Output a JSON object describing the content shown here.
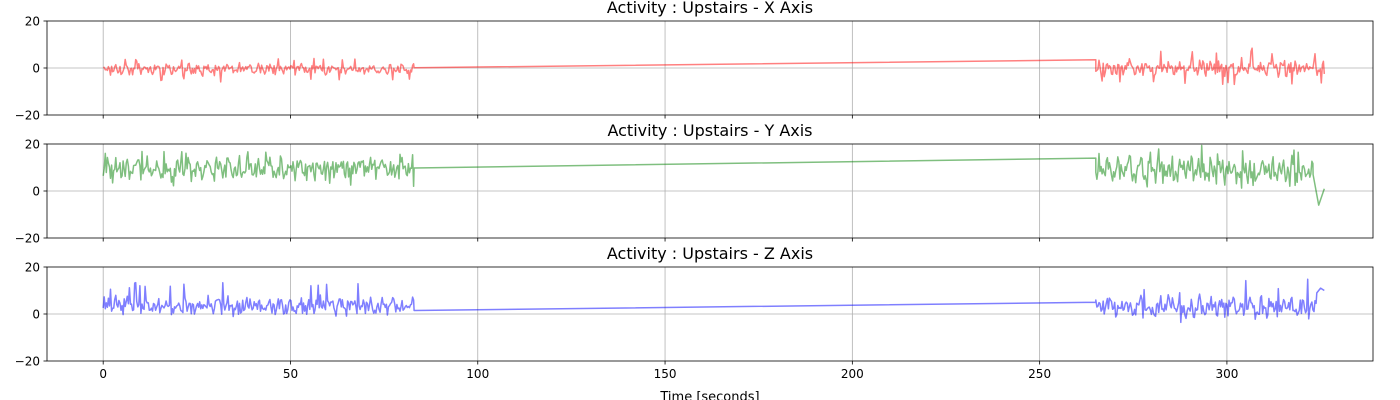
{
  "chart_data": [
    {
      "type": "line",
      "title": "Activity : Upstairs - X Axis",
      "xlabel": "",
      "ylabel": "",
      "xlim": [
        -15,
        339
      ],
      "ylim": [
        -20,
        20
      ],
      "xticks": [
        "0",
        "50",
        "100",
        "150",
        "200",
        "250",
        "300"
      ],
      "yticks": [
        "20",
        "0",
        "−20"
      ],
      "grid": true,
      "show_xtick_labels": false,
      "color": "#ff0000",
      "series": [
        {
          "segments": [
            {
              "range": [
                0,
                83
              ],
              "mean": -0.5,
              "amp": 2.2,
              "peak": 4.5,
              "spike": -6
            },
            {
              "range": [
                265,
                326
              ],
              "mean": 0,
              "amp": 3.2,
              "peak": 8.5,
              "spike": -7
            }
          ],
          "bridge": [
            [
              83,
              0.1
            ],
            [
              265,
              3.5
            ]
          ],
          "end_value": -2.5
        }
      ]
    },
    {
      "type": "line",
      "title": "Activity : Upstairs - Y Axis",
      "xlabel": "",
      "ylabel": "",
      "xlim": [
        -15,
        339
      ],
      "ylim": [
        -20,
        20
      ],
      "xticks": [
        "0",
        "50",
        "100",
        "150",
        "200",
        "250",
        "300"
      ],
      "yticks": [
        "20",
        "0",
        "−20"
      ],
      "grid": true,
      "show_xtick_labels": false,
      "color": "#008000",
      "series": [
        {
          "segments": [
            {
              "range": [
                0,
                83
              ],
              "mean": 9.5,
              "amp": 4.5,
              "peak": 17.5,
              "spike": 2
            },
            {
              "range": [
                265,
                323
              ],
              "mean": 9,
              "amp": 5.5,
              "peak": 19.5,
              "spike": 1
            }
          ],
          "bridge": [
            [
              83,
              9.8
            ],
            [
              265,
              14
            ]
          ],
          "tail": [
            [
              323,
              7
            ],
            [
              324.5,
              -6
            ],
            [
              326,
              1
            ]
          ]
        }
      ]
    },
    {
      "type": "line",
      "title": "Activity : Upstairs - Z Axis",
      "xlabel": "Time [seconds]",
      "ylabel": "",
      "xlim": [
        -15,
        339
      ],
      "ylim": [
        -20,
        20
      ],
      "xticks": [
        "0",
        "50",
        "100",
        "150",
        "200",
        "250",
        "300"
      ],
      "yticks": [
        "20",
        "0",
        "−20"
      ],
      "grid": true,
      "show_xtick_labels": true,
      "color": "#0000ff",
      "series": [
        {
          "segments": [
            {
              "range": [
                0,
                83
              ],
              "mean": 3.5,
              "amp": 3.5,
              "peak": 14,
              "spike": -1
            },
            {
              "range": [
                265,
                324
              ],
              "mean": 3,
              "amp": 4.5,
              "peak": 15,
              "spike": -5
            }
          ],
          "bridge": [
            [
              83,
              1.5
            ],
            [
              265,
              5
            ]
          ],
          "tail": [
            [
              324,
              9
            ],
            [
              325,
              11
            ],
            [
              326,
              10
            ]
          ]
        }
      ]
    }
  ]
}
